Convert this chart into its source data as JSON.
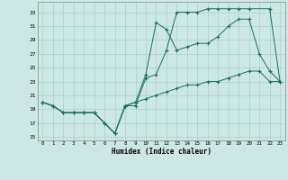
{
  "xlabel": "Humidex (Indice chaleur)",
  "bg_color": "#cce8e4",
  "grid_color": "#aacfcb",
  "line_color": "#1a6e64",
  "xlim": [
    -0.5,
    23.5
  ],
  "ylim": [
    14.5,
    34.5
  ],
  "yticks": [
    15,
    17,
    19,
    21,
    23,
    25,
    27,
    29,
    31,
    33
  ],
  "xticks": [
    0,
    1,
    2,
    3,
    4,
    5,
    6,
    7,
    8,
    9,
    10,
    11,
    12,
    13,
    14,
    15,
    16,
    17,
    18,
    19,
    20,
    21,
    22,
    23
  ],
  "line1_x": [
    0,
    1,
    2,
    3,
    4,
    5,
    6,
    7,
    8,
    9,
    10,
    11,
    12,
    13,
    14,
    15,
    16,
    17,
    18,
    19,
    20,
    22,
    23
  ],
  "line1_y": [
    20.0,
    19.5,
    18.5,
    18.5,
    18.5,
    18.5,
    17.0,
    15.5,
    19.5,
    19.5,
    23.5,
    24.0,
    27.5,
    33.0,
    33.0,
    33.0,
    33.5,
    33.5,
    33.5,
    33.5,
    33.5,
    33.5,
    23.0
  ],
  "line2_x": [
    0,
    1,
    2,
    3,
    4,
    5,
    6,
    7,
    8,
    9,
    10,
    11,
    12,
    13,
    14,
    15,
    16,
    17,
    18,
    19,
    20,
    21,
    22,
    23
  ],
  "line2_y": [
    20.0,
    19.5,
    18.5,
    18.5,
    18.5,
    18.5,
    17.0,
    15.5,
    19.5,
    20.0,
    24.0,
    31.5,
    30.5,
    27.5,
    28.0,
    28.5,
    28.5,
    29.5,
    31.0,
    32.0,
    32.0,
    27.0,
    24.5,
    23.0
  ],
  "line3_x": [
    0,
    1,
    2,
    3,
    4,
    5,
    6,
    7,
    8,
    9,
    10,
    11,
    12,
    13,
    14,
    15,
    16,
    17,
    18,
    19,
    20,
    21,
    22,
    23
  ],
  "line3_y": [
    20.0,
    19.5,
    18.5,
    18.5,
    18.5,
    18.5,
    17.0,
    15.5,
    19.5,
    20.0,
    20.5,
    21.0,
    21.5,
    22.0,
    22.5,
    22.5,
    23.0,
    23.0,
    23.5,
    24.0,
    24.5,
    24.5,
    23.0,
    23.0
  ]
}
